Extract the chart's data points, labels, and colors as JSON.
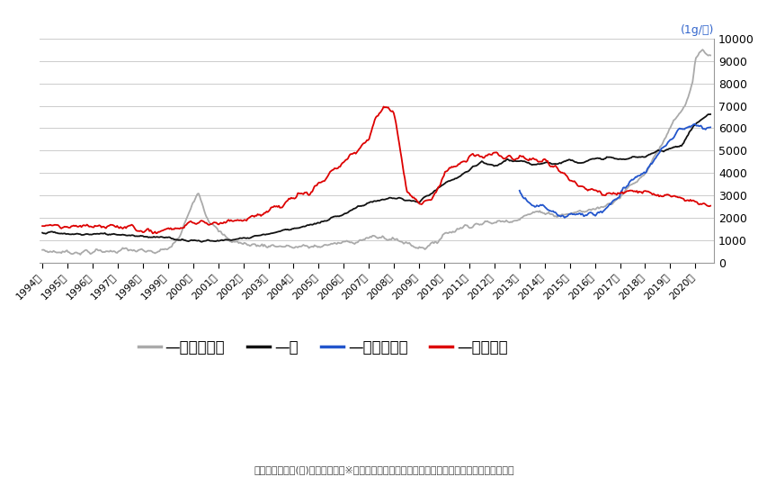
{
  "ylabel_unit": "(1g/円)",
  "ylim": [
    0,
    10000
  ],
  "yticks": [
    0,
    1000,
    2000,
    3000,
    4000,
    5000,
    6000,
    7000,
    8000,
    9000,
    10000
  ],
  "footnote": "データ配信元：(株)時事通信社　※イリジウム価格は大手地金商参考価格を基に北辰物産が作成",
  "legend": [
    "パラジウム",
    "金",
    "イリジウム",
    "プラチナ"
  ],
  "legend_colors": [
    "#aaaaaa",
    "#111111",
    "#2255cc",
    "#dd0000"
  ],
  "bg_color": "#ffffff",
  "grid_color": "#cccccc",
  "palladium_t": [
    1994.0,
    1994.5,
    1995.0,
    1995.5,
    1996.0,
    1996.5,
    1997.0,
    1997.5,
    1998.0,
    1998.5,
    1999.0,
    1999.5,
    2000.0,
    2000.2,
    2000.4,
    2000.5,
    2000.7,
    2001.0,
    2001.5,
    2002.0,
    2002.5,
    2003.0,
    2003.5,
    2004.0,
    2004.5,
    2005.0,
    2005.5,
    2006.0,
    2006.5,
    2007.0,
    2007.5,
    2008.0,
    2008.5,
    2009.0,
    2009.5,
    2010.0,
    2010.5,
    2011.0,
    2011.5,
    2012.0,
    2012.5,
    2013.0,
    2013.5,
    2014.0,
    2014.5,
    2015.0,
    2015.5,
    2016.0,
    2016.5,
    2017.0,
    2017.5,
    2018.0,
    2018.5,
    2019.0,
    2019.3,
    2019.6,
    2019.9,
    2020.0,
    2020.3,
    2020.5
  ],
  "palladium_v": [
    550,
    500,
    480,
    490,
    500,
    520,
    560,
    580,
    500,
    480,
    600,
    1200,
    2800,
    3200,
    2600,
    2200,
    1800,
    1400,
    1000,
    850,
    800,
    780,
    750,
    700,
    720,
    750,
    820,
    900,
    1000,
    1100,
    1150,
    1050,
    900,
    700,
    750,
    1300,
    1500,
    1700,
    1750,
    1800,
    1900,
    2000,
    2200,
    2300,
    2100,
    2200,
    2300,
    2400,
    2600,
    3000,
    3500,
    4000,
    5000,
    6000,
    6500,
    7000,
    8000,
    9000,
    9500,
    9200
  ],
  "gold_t": [
    1994.0,
    1995.0,
    1996.0,
    1997.0,
    1998.0,
    1999.0,
    2000.0,
    2001.0,
    2002.0,
    2003.0,
    2004.0,
    2005.0,
    2006.0,
    2007.0,
    2008.0,
    2009.0,
    2010.0,
    2011.0,
    2011.5,
    2012.0,
    2012.5,
    2013.0,
    2013.5,
    2014.0,
    2014.5,
    2015.0,
    2015.5,
    2016.0,
    2016.5,
    2017.0,
    2017.5,
    2018.0,
    2018.5,
    2019.0,
    2019.5,
    2020.0,
    2020.5
  ],
  "gold_v": [
    1380,
    1280,
    1280,
    1290,
    1200,
    1100,
    1000,
    980,
    1100,
    1300,
    1550,
    1750,
    2200,
    2700,
    2900,
    2700,
    3500,
    4100,
    4500,
    4300,
    4600,
    4500,
    4400,
    4500,
    4400,
    4600,
    4500,
    4600,
    4700,
    4600,
    4700,
    4700,
    5000,
    5100,
    5300,
    6200,
    6600
  ],
  "iridium_t": [
    2013.0,
    2013.3,
    2013.6,
    2014.0,
    2014.3,
    2014.6,
    2015.0,
    2015.3,
    2015.6,
    2016.0,
    2016.3,
    2016.6,
    2017.0,
    2017.3,
    2017.6,
    2018.0,
    2018.3,
    2018.6,
    2019.0,
    2019.3,
    2019.6,
    2020.0,
    2020.3,
    2020.5
  ],
  "iridium_v": [
    3200,
    2800,
    2500,
    2500,
    2300,
    2100,
    2100,
    2200,
    2100,
    2200,
    2300,
    2600,
    3000,
    3500,
    3800,
    4000,
    4500,
    5000,
    5500,
    5800,
    6000,
    6200,
    6100,
    6000
  ],
  "platinum_t": [
    1994.0,
    1994.5,
    1995.0,
    1995.5,
    1996.0,
    1996.5,
    1997.0,
    1997.5,
    1998.0,
    1998.5,
    1999.0,
    1999.5,
    2000.0,
    2000.5,
    2001.0,
    2001.5,
    2002.0,
    2002.5,
    2003.0,
    2003.5,
    2004.0,
    2004.5,
    2005.0,
    2005.5,
    2006.0,
    2006.5,
    2007.0,
    2007.3,
    2007.6,
    2008.0,
    2008.2,
    2008.5,
    2009.0,
    2009.5,
    2010.0,
    2010.5,
    2011.0,
    2011.5,
    2012.0,
    2012.5,
    2013.0,
    2013.5,
    2014.0,
    2014.5,
    2015.0,
    2015.5,
    2016.0,
    2016.5,
    2017.0,
    2017.5,
    2018.0,
    2018.5,
    2019.0,
    2019.5,
    2020.0,
    2020.5
  ],
  "platinum_v": [
    1700,
    1650,
    1600,
    1580,
    1600,
    1600,
    1650,
    1600,
    1480,
    1350,
    1500,
    1600,
    1800,
    1750,
    1800,
    1900,
    2000,
    2100,
    2300,
    2500,
    2900,
    3100,
    3500,
    3900,
    4500,
    5000,
    5500,
    6500,
    7000,
    6800,
    5500,
    3200,
    2700,
    2800,
    4000,
    4300,
    4700,
    4800,
    4800,
    4700,
    4700,
    4600,
    4600,
    4300,
    3700,
    3300,
    3200,
    3100,
    3200,
    3200,
    3200,
    3100,
    3000,
    2900,
    2700,
    2600
  ]
}
